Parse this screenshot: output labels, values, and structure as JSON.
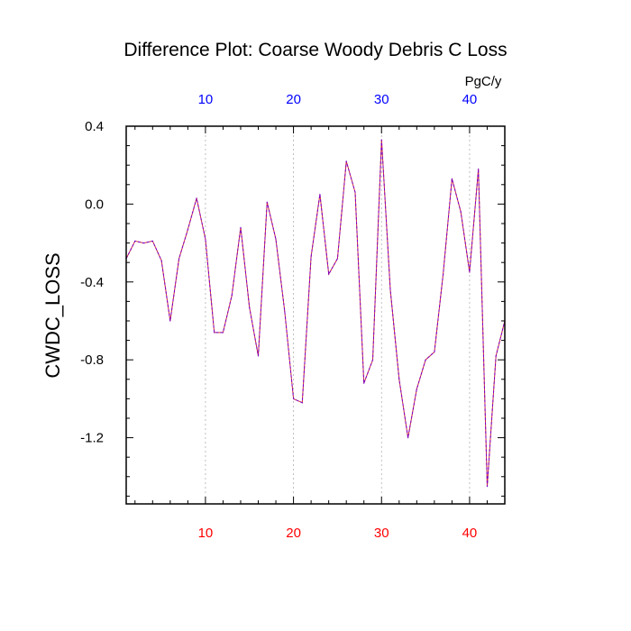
{
  "chart_data": {
    "type": "line",
    "title": "Difference Plot: Coarse Woody Debris C Loss",
    "ylabel": "CWDC_LOSS",
    "units_label": "PgC/y",
    "xlim": [
      1,
      44
    ],
    "ylim": [
      -1.54,
      0.4
    ],
    "x_ticks": [
      10,
      20,
      30,
      40
    ],
    "x_tick_labels": [
      "10",
      "20",
      "30",
      "40"
    ],
    "y_ticks": [
      0.4,
      0.0,
      -0.4,
      -0.8,
      -1.2
    ],
    "y_tick_labels": [
      "0.4",
      "0.0",
      "-0.4",
      "-0.8",
      "-1.2"
    ],
    "y_minor_step": 0.1,
    "x_minor_step": 2,
    "grid": "vertical-dashed",
    "colors": {
      "bottom_ticks": "#ff0000",
      "top_ticks": "#0000ff",
      "line": "#7a00c8",
      "grid": "#b0b0b0"
    },
    "series": [
      {
        "name": "CWDC_LOSS difference",
        "x": [
          1,
          2,
          3,
          4,
          5,
          6,
          7,
          8,
          9,
          10,
          11,
          12,
          13,
          14,
          15,
          16,
          17,
          18,
          19,
          20,
          21,
          22,
          23,
          24,
          25,
          26,
          27,
          28,
          29,
          30,
          31,
          32,
          33,
          34,
          35,
          36,
          37,
          38,
          39,
          40,
          41,
          42,
          43,
          44
        ],
        "values": [
          -0.28,
          -0.19,
          -0.2,
          -0.19,
          -0.29,
          -0.6,
          -0.28,
          -0.13,
          0.03,
          -0.18,
          -0.66,
          -0.66,
          -0.47,
          -0.12,
          -0.53,
          -0.78,
          0.01,
          -0.18,
          -0.55,
          -1.0,
          -1.02,
          -0.27,
          0.05,
          -0.36,
          -0.28,
          0.22,
          0.06,
          -0.92,
          -0.8,
          0.33,
          -0.44,
          -0.9,
          -1.2,
          -0.95,
          -0.8,
          -0.76,
          -0.36,
          0.13,
          -0.04,
          -0.35,
          0.18,
          -1.45,
          -0.78,
          -0.6
        ]
      }
    ]
  }
}
